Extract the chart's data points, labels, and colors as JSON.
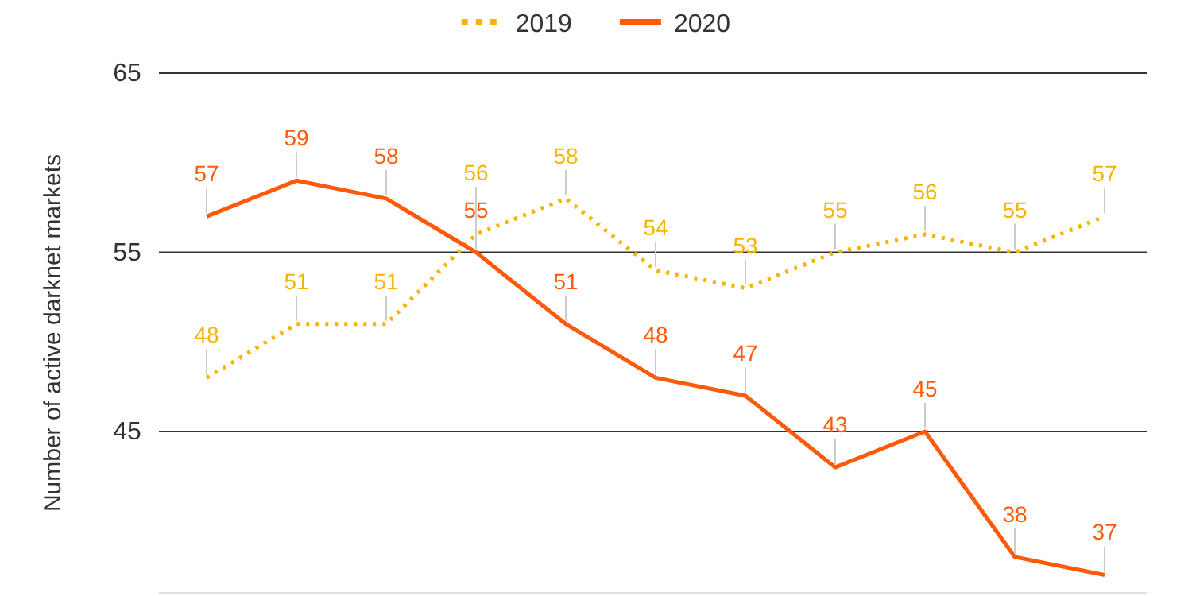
{
  "chart_data": {
    "type": "line",
    "ylabel": "Number of active darknet markets",
    "categories": [
      null,
      null,
      null,
      null,
      null,
      null,
      null,
      null,
      null,
      null,
      null
    ],
    "series": [
      {
        "name": "2019",
        "color": "#f5b400",
        "line_style": "dotted",
        "values": [
          48,
          51,
          51,
          56,
          58,
          54,
          53,
          55,
          56,
          55,
          57
        ]
      },
      {
        "name": "2020",
        "color": "#ff5a0a",
        "line_style": "solid",
        "values": [
          57,
          59,
          58,
          55,
          51,
          48,
          47,
          43,
          45,
          38,
          37
        ]
      }
    ],
    "ylim": [
      36,
      65
    ],
    "yticks": [
      45,
      55,
      65
    ],
    "grid": "y",
    "legend": "top",
    "data_labels": true,
    "marker": "none"
  }
}
